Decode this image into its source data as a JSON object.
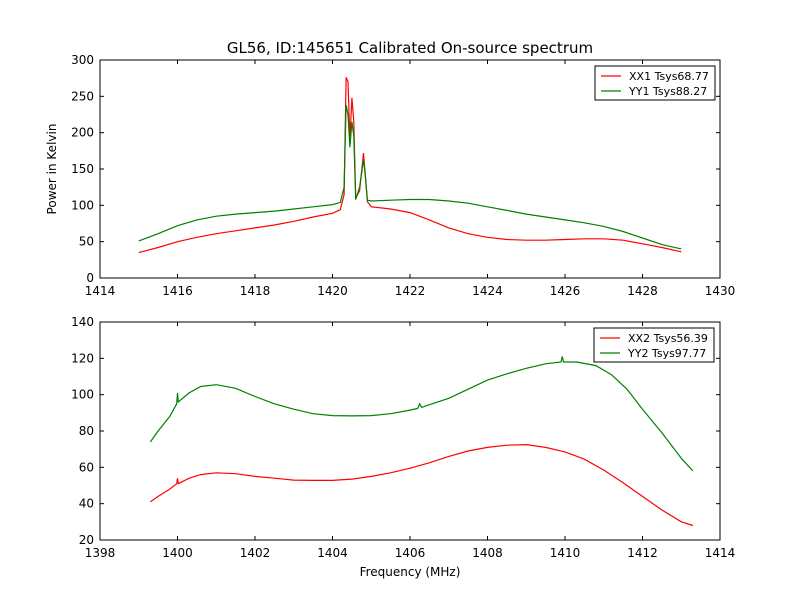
{
  "chart_data": [
    {
      "type": "line",
      "title": "GL56, ID:145651 Calibrated On-source spectrum",
      "xlabel": "",
      "ylabel": "Power in Kelvin",
      "xlim": [
        1414,
        1430
      ],
      "ylim": [
        0,
        300
      ],
      "xticks": [
        "1414",
        "1416",
        "1418",
        "1420",
        "1422",
        "1424",
        "1426",
        "1428",
        "1430"
      ],
      "yticks": [
        "0",
        "50",
        "100",
        "150",
        "200",
        "250",
        "300"
      ],
      "legend_position": "top-right",
      "series": [
        {
          "name": "XX1 Tsys68.77",
          "color": "#ff0000",
          "x": [
            1415.0,
            1415.5,
            1416.0,
            1416.5,
            1417.0,
            1417.5,
            1418.0,
            1418.5,
            1419.0,
            1419.5,
            1420.0,
            1420.2,
            1420.3,
            1420.35,
            1420.4,
            1420.45,
            1420.5,
            1420.55,
            1420.6,
            1420.7,
            1420.8,
            1420.85,
            1420.9,
            1421.0,
            1421.5,
            1422.0,
            1422.5,
            1423.0,
            1423.5,
            1424.0,
            1424.5,
            1425.0,
            1425.5,
            1426.0,
            1426.5,
            1427.0,
            1427.5,
            1428.0,
            1428.5,
            1429.0
          ],
          "values": [
            35,
            42,
            50,
            56,
            61,
            65,
            69,
            73,
            78,
            84,
            89,
            94,
            115,
            276,
            270,
            190,
            248,
            215,
            110,
            120,
            172,
            140,
            105,
            98,
            95,
            90,
            80,
            69,
            61,
            56,
            53,
            52,
            52,
            53,
            54,
            54,
            52,
            47,
            42,
            36
          ]
        },
        {
          "name": "YY1 Tsys88.27",
          "color": "#008000",
          "x": [
            1415.0,
            1415.5,
            1416.0,
            1416.5,
            1417.0,
            1417.5,
            1418.0,
            1418.5,
            1419.0,
            1419.5,
            1420.0,
            1420.2,
            1420.3,
            1420.35,
            1420.4,
            1420.45,
            1420.5,
            1420.55,
            1420.6,
            1420.7,
            1420.8,
            1420.85,
            1420.9,
            1421.0,
            1421.5,
            1422.0,
            1422.5,
            1423.0,
            1423.5,
            1424.0,
            1424.5,
            1425.0,
            1425.5,
            1426.0,
            1426.5,
            1427.0,
            1427.5,
            1428.0,
            1428.5,
            1429.0
          ],
          "values": [
            51,
            61,
            72,
            80,
            85,
            88,
            90,
            92,
            95,
            98,
            101,
            104,
            125,
            238,
            225,
            180,
            215,
            195,
            108,
            125,
            163,
            140,
            107,
            106,
            107,
            108,
            108,
            106,
            103,
            98,
            93,
            88,
            84,
            80,
            76,
            71,
            64,
            55,
            46,
            40
          ]
        }
      ]
    },
    {
      "type": "line",
      "title": "",
      "xlabel": "Frequency (MHz)",
      "ylabel": "",
      "xlim": [
        1398,
        1414
      ],
      "ylim": [
        20,
        140
      ],
      "xticks": [
        "1398",
        "1400",
        "1402",
        "1404",
        "1406",
        "1408",
        "1410",
        "1412",
        "1414"
      ],
      "yticks": [
        "20",
        "40",
        "60",
        "80",
        "100",
        "120",
        "140"
      ],
      "legend_position": "top-right",
      "series": [
        {
          "name": "XX2 Tsys56.39",
          "color": "#ff0000",
          "x": [
            1399.3,
            1399.5,
            1399.8,
            1399.98,
            1400.0,
            1400.02,
            1400.3,
            1400.6,
            1401.0,
            1401.5,
            1402.0,
            1402.5,
            1403.0,
            1403.5,
            1404.0,
            1404.5,
            1405.0,
            1405.5,
            1406.0,
            1406.5,
            1407.0,
            1407.5,
            1408.0,
            1408.5,
            1409.0,
            1409.5,
            1410.0,
            1410.5,
            1411.0,
            1411.5,
            1412.0,
            1412.5,
            1413.0,
            1413.3
          ],
          "values": [
            41,
            44,
            48,
            51,
            54,
            51,
            54,
            56,
            57,
            56.5,
            55,
            54,
            53,
            52.8,
            52.8,
            53.5,
            55,
            57,
            59.5,
            62.5,
            66,
            69,
            71,
            72.2,
            72.5,
            71,
            68.5,
            64.5,
            58.5,
            51.5,
            44,
            36.5,
            30,
            28
          ]
        },
        {
          "name": "YY2 Tsys97.77",
          "color": "#008000",
          "x": [
            1399.3,
            1399.5,
            1399.8,
            1399.98,
            1400.0,
            1400.02,
            1400.3,
            1400.6,
            1401.0,
            1401.5,
            1402.0,
            1402.5,
            1403.0,
            1403.5,
            1404.0,
            1404.5,
            1405.0,
            1405.5,
            1406.0,
            1406.2,
            1406.25,
            1406.3,
            1406.5,
            1407.0,
            1407.5,
            1408.0,
            1408.5,
            1409.0,
            1409.5,
            1409.9,
            1409.93,
            1409.96,
            1410.3,
            1410.8,
            1411.2,
            1411.6,
            1412.0,
            1412.5,
            1413.0,
            1413.3
          ],
          "values": [
            74,
            80,
            88,
            95,
            101,
            96,
            101,
            104.5,
            105.5,
            103.5,
            99,
            95,
            92,
            89.5,
            88.5,
            88.3,
            88.5,
            89.5,
            91.5,
            92.5,
            95,
            93,
            94.5,
            98,
            103,
            108,
            111.5,
            114.5,
            117,
            118,
            121,
            118,
            118,
            116,
            111,
            103,
            92,
            79,
            65,
            58
          ]
        }
      ]
    }
  ]
}
